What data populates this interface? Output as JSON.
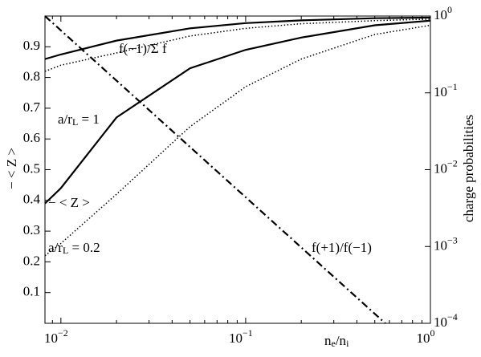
{
  "chart_data": {
    "type": "line",
    "xlabel": [
      {
        "t": "n"
      },
      {
        "t": "e",
        "sub": true
      },
      {
        "t": "/n"
      },
      {
        "t": "i",
        "sub": true
      }
    ],
    "ylabel": "− < Z >",
    "y2label": "charge probabilities",
    "xscale": "log",
    "y2scale": "log",
    "xlim": [
      0.0082,
      1
    ],
    "ylim": [
      0,
      1
    ],
    "y2lim": [
      0.0001,
      1
    ],
    "xticks": [
      {
        "value": 0.01,
        "label": "10",
        "sup": "−2"
      },
      {
        "value": 0.1,
        "label": "10",
        "sup": "−1"
      },
      {
        "value": 1,
        "label": "10",
        "sup": "0"
      }
    ],
    "yticks": [
      0.1,
      0.2,
      0.3,
      0.4,
      0.5,
      0.6,
      0.7,
      0.8,
      0.9
    ],
    "y2ticks": [
      {
        "value": 0.0001,
        "label": "10",
        "sup": "−4"
      },
      {
        "value": 0.001,
        "label": "10",
        "sup": "−3"
      },
      {
        "value": 0.01,
        "label": "10",
        "sup": "−2"
      },
      {
        "value": 0.1,
        "label": "10",
        "sup": "−1"
      },
      {
        "value": 1,
        "label": "10",
        "sup": "0"
      }
    ],
    "series": [
      {
        "color": "#000",
        "dash": "solid",
        "x": [
          0.0082,
          0.01,
          0.02,
          0.05,
          0.1,
          0.2,
          0.5,
          1
        ],
        "values": [
          0.86,
          0.875,
          0.92,
          0.96,
          0.977,
          0.986,
          0.993,
          0.995
        ]
      },
      {
        "color": "#000",
        "dash": "dotted",
        "x": [
          0.0082,
          0.01,
          0.02,
          0.05,
          0.1,
          0.2,
          0.5,
          1
        ],
        "values": [
          0.82,
          0.84,
          0.88,
          0.935,
          0.96,
          0.975,
          0.985,
          0.99
        ]
      },
      {
        "color": "#000",
        "dash": "solid",
        "x": [
          0.0082,
          0.01,
          0.02,
          0.05,
          0.1,
          0.2,
          0.5,
          1
        ],
        "values": [
          0.39,
          0.44,
          0.67,
          0.83,
          0.89,
          0.93,
          0.97,
          0.985
        ]
      },
      {
        "color": "#000",
        "dash": "dotted",
        "x": [
          0.0082,
          0.01,
          0.02,
          0.05,
          0.1,
          0.2,
          0.5,
          1
        ],
        "values": [
          0.22,
          0.26,
          0.42,
          0.64,
          0.77,
          0.86,
          0.94,
          0.97
        ]
      },
      {
        "color": "#000",
        "dash": "dashdot",
        "axis": "y2",
        "x": [
          0.0082,
          0.57
        ],
        "values": [
          1,
          0.0001
        ]
      }
    ],
    "annotations": [
      [
        {
          "t": "f(−1)/Σ f"
        }
      ],
      [
        {
          "t": "a/r"
        },
        {
          "t": "L",
          "sub": true
        },
        {
          "t": " = 1"
        }
      ],
      [
        {
          "t": "− < Z >"
        }
      ],
      [
        {
          "t": "a/r"
        },
        {
          "t": "L",
          "sub": true
        },
        {
          "t": " = 0.2"
        }
      ],
      [
        {
          "t": "f(+1)/f(−1)"
        }
      ]
    ]
  }
}
